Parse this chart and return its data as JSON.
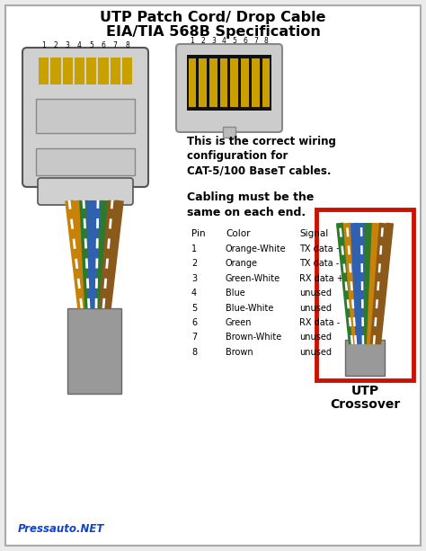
{
  "title_line1": "UTP Patch Cord/ Drop Cable",
  "title_line2": "EIA/TIA 568B Specification",
  "bg_color": "#ebebeb",
  "correct_wiring_text_lines": [
    "This is the correct wiring",
    "configuration for",
    "CAT-5/100 BaseT cables."
  ],
  "cabling_text_lines": [
    "Cabling must be the",
    "same on each end."
  ],
  "footer_text": "Pressauto.NET",
  "crossover_label_line1": "UTP",
  "crossover_label_line2": "Crossover",
  "pin_header": "Pin",
  "color_header": "Color",
  "signal_header": "Signal",
  "pin_data": [
    {
      "pin": "1",
      "color": "Orange-White",
      "signal": "TX data +"
    },
    {
      "pin": "2",
      "color": "Orange",
      "signal": "TX data -"
    },
    {
      "pin": "3",
      "color": "Green-White",
      "signal": "RX data +"
    },
    {
      "pin": "4",
      "color": "Blue",
      "signal": "unused"
    },
    {
      "pin": "5",
      "color": "Blue-White",
      "signal": "unused"
    },
    {
      "pin": "6",
      "color": "Green",
      "signal": "RX data -"
    },
    {
      "pin": "7",
      "color": "Brown-White",
      "signal": "unused"
    },
    {
      "pin": "8",
      "color": "Brown",
      "signal": "unused"
    }
  ],
  "crossover_border": "#cc1100",
  "number_labels": [
    "1",
    "2",
    "3",
    "4",
    "5",
    "6",
    "7",
    "8"
  ],
  "plug_gold": "#c8a000",
  "plug_gray": "#d0d0d0",
  "plug_dark": "#555555",
  "wire_order_left": [
    {
      "base": "#c8820a",
      "stripe": "#ffffff",
      "striped": true
    },
    {
      "base": "#c8820a",
      "stripe": null,
      "striped": false
    },
    {
      "base": "#2d7a2d",
      "stripe": "#ffffff",
      "striped": true
    },
    {
      "base": "#3060b0",
      "stripe": null,
      "striped": false
    },
    {
      "base": "#3060b0",
      "stripe": "#ffffff",
      "striped": true
    },
    {
      "base": "#2d7a2d",
      "stripe": null,
      "striped": false
    },
    {
      "base": "#8B5a1a",
      "stripe": "#ffffff",
      "striped": true
    },
    {
      "base": "#8B5a1a",
      "stripe": null,
      "striped": false
    }
  ],
  "wire_order_right": [
    {
      "base": "#2d7a2d",
      "stripe": "#ffffff",
      "striped": true
    },
    {
      "base": "#c8820a",
      "stripe": "#ffffff",
      "striped": true
    },
    {
      "base": "#3060b0",
      "stripe": null,
      "striped": false
    },
    {
      "base": "#3060b0",
      "stripe": "#ffffff",
      "striped": true
    },
    {
      "base": "#2d7a2d",
      "stripe": null,
      "striped": false
    },
    {
      "base": "#c8820a",
      "stripe": null,
      "striped": false
    },
    {
      "base": "#8B5a1a",
      "stripe": "#ffffff",
      "striped": true
    },
    {
      "base": "#8B5a1a",
      "stripe": null,
      "striped": false
    }
  ]
}
